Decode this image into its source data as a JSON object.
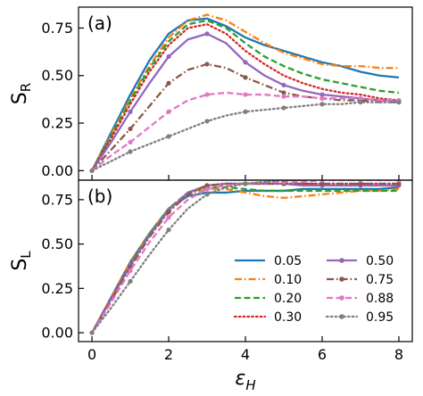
{
  "chart_data": [
    {
      "type": "line",
      "panel_label": "(a)",
      "ylabel": "S",
      "ylabel_subscript": "R",
      "xlabel": "",
      "xlim": [
        -0.35,
        8.35
      ],
      "ylim": [
        -0.05,
        0.86
      ],
      "xticks": [
        0,
        2,
        4,
        6,
        8
      ],
      "xtick_labels": [
        "",
        "",
        "",
        "",
        ""
      ],
      "yticks": [
        0.0,
        0.25,
        0.5,
        0.75
      ],
      "ytick_labels": [
        "0.00",
        "0.25",
        "0.50",
        "0.75"
      ],
      "grid": false,
      "series": [
        {
          "name": "0.05",
          "color": "#1f77b4",
          "style": "solid",
          "marker": "none",
          "x": [
            0,
            0.5,
            1,
            1.5,
            2,
            2.5,
            3,
            3.5,
            4,
            4.5,
            5,
            5.5,
            6,
            6.5,
            7,
            7.5,
            8
          ],
          "y": [
            0,
            0.2,
            0.4,
            0.58,
            0.72,
            0.79,
            0.8,
            0.76,
            0.7,
            0.66,
            0.63,
            0.6,
            0.57,
            0.55,
            0.52,
            0.5,
            0.49
          ]
        },
        {
          "name": "0.10",
          "color": "#ff7f0e",
          "style": "dashdot",
          "marker": "none",
          "x": [
            0,
            0.5,
            1,
            1.5,
            2,
            2.5,
            3,
            3.5,
            4,
            4.5,
            5,
            5.5,
            6,
            6.5,
            7,
            7.5,
            8
          ],
          "y": [
            0,
            0.19,
            0.38,
            0.55,
            0.7,
            0.79,
            0.82,
            0.79,
            0.73,
            0.67,
            0.62,
            0.59,
            0.56,
            0.55,
            0.55,
            0.54,
            0.54
          ]
        },
        {
          "name": "0.20",
          "color": "#2ca02c",
          "style": "dashed",
          "marker": "none",
          "x": [
            0,
            0.5,
            1,
            1.5,
            2,
            2.5,
            3,
            3.5,
            4,
            4.5,
            5,
            5.5,
            6,
            6.5,
            7,
            7.5,
            8
          ],
          "y": [
            0,
            0.18,
            0.37,
            0.54,
            0.68,
            0.77,
            0.79,
            0.75,
            0.67,
            0.6,
            0.55,
            0.51,
            0.48,
            0.46,
            0.44,
            0.42,
            0.41
          ]
        },
        {
          "name": "0.30",
          "color": "#d62728",
          "style": "dotted",
          "marker": "none",
          "x": [
            0,
            0.5,
            1,
            1.5,
            2,
            2.5,
            3,
            3.5,
            4,
            4.5,
            5,
            5.5,
            6,
            6.5,
            7,
            7.5,
            8
          ],
          "y": [
            0,
            0.17,
            0.35,
            0.52,
            0.66,
            0.75,
            0.77,
            0.72,
            0.63,
            0.56,
            0.5,
            0.46,
            0.43,
            0.41,
            0.4,
            0.38,
            0.37
          ]
        },
        {
          "name": "0.50",
          "color": "#9467bd",
          "style": "solid",
          "marker": "circle",
          "x": [
            0,
            0.5,
            1,
            1.5,
            2,
            2.5,
            3,
            3.5,
            4,
            4.5,
            5,
            5.5,
            6,
            6.5,
            7,
            7.5,
            8
          ],
          "y": [
            0,
            0.15,
            0.31,
            0.46,
            0.6,
            0.69,
            0.72,
            0.67,
            0.57,
            0.5,
            0.45,
            0.42,
            0.4,
            0.39,
            0.38,
            0.37,
            0.37
          ]
        },
        {
          "name": "0.75",
          "color": "#8c564b",
          "style": "dashdot",
          "marker": "circle",
          "x": [
            0,
            0.5,
            1,
            1.5,
            2,
            2.5,
            3,
            3.5,
            4,
            4.5,
            5,
            5.5,
            6,
            6.5,
            7,
            7.5,
            8
          ],
          "y": [
            0,
            0.11,
            0.22,
            0.34,
            0.46,
            0.53,
            0.56,
            0.54,
            0.49,
            0.45,
            0.41,
            0.39,
            0.38,
            0.37,
            0.37,
            0.36,
            0.36
          ]
        },
        {
          "name": "0.88",
          "color": "#e377c2",
          "style": "dashed",
          "marker": "circle",
          "x": [
            0,
            0.5,
            1,
            1.5,
            2,
            2.5,
            3,
            3.5,
            4,
            4.5,
            5,
            5.5,
            6,
            6.5,
            7,
            7.5,
            8
          ],
          "y": [
            0,
            0.08,
            0.15,
            0.23,
            0.31,
            0.37,
            0.4,
            0.41,
            0.4,
            0.4,
            0.39,
            0.39,
            0.38,
            0.38,
            0.38,
            0.37,
            0.37
          ]
        },
        {
          "name": "0.95",
          "color": "#7f7f7f",
          "style": "dotted",
          "marker": "circle",
          "x": [
            0,
            0.5,
            1,
            1.5,
            2,
            2.5,
            3,
            3.5,
            4,
            4.5,
            5,
            5.5,
            6,
            6.5,
            7,
            7.5,
            8
          ],
          "y": [
            0,
            0.05,
            0.1,
            0.14,
            0.18,
            0.22,
            0.26,
            0.29,
            0.31,
            0.32,
            0.33,
            0.34,
            0.35,
            0.35,
            0.36,
            0.36,
            0.36
          ]
        }
      ]
    },
    {
      "type": "line",
      "panel_label": "(b)",
      "ylabel": "S",
      "ylabel_subscript": "L",
      "xlabel": "ε",
      "xlabel_subscript": "H",
      "xlim": [
        -0.35,
        8.35
      ],
      "ylim": [
        -0.05,
        0.86
      ],
      "xticks": [
        0,
        2,
        4,
        6,
        8
      ],
      "xtick_labels": [
        "0",
        "2",
        "4",
        "6",
        "8"
      ],
      "yticks": [
        0.0,
        0.25,
        0.5,
        0.75
      ],
      "ytick_labels": [
        "0.00",
        "0.25",
        "0.50",
        "0.75"
      ],
      "grid": false,
      "legend_position": "bottom-right",
      "legend_columns": 2,
      "series": [
        {
          "name": "0.05",
          "color": "#1f77b4",
          "style": "solid",
          "marker": "none",
          "x": [
            0,
            0.5,
            1,
            1.5,
            2,
            2.5,
            3,
            3.5,
            4,
            4.5,
            5,
            5.5,
            6,
            6.5,
            7,
            7.5,
            8
          ],
          "y": [
            0,
            0.2,
            0.4,
            0.56,
            0.7,
            0.77,
            0.79,
            0.79,
            0.8,
            0.8,
            0.8,
            0.81,
            0.81,
            0.81,
            0.81,
            0.81,
            0.82
          ]
        },
        {
          "name": "0.10",
          "color": "#ff7f0e",
          "style": "dashdot",
          "marker": "none",
          "x": [
            0,
            0.5,
            1,
            1.5,
            2,
            2.5,
            3,
            3.5,
            4,
            4.5,
            5,
            5.5,
            6,
            6.5,
            7,
            7.5,
            8
          ],
          "y": [
            0,
            0.2,
            0.4,
            0.56,
            0.7,
            0.78,
            0.81,
            0.81,
            0.79,
            0.77,
            0.76,
            0.77,
            0.78,
            0.79,
            0.8,
            0.8,
            0.81
          ]
        },
        {
          "name": "0.20",
          "color": "#2ca02c",
          "style": "dashed",
          "marker": "none",
          "x": [
            0,
            0.5,
            1,
            1.5,
            2,
            2.5,
            3,
            3.5,
            4,
            4.5,
            5,
            5.5,
            6,
            6.5,
            7,
            7.5,
            8
          ],
          "y": [
            0,
            0.19,
            0.39,
            0.56,
            0.7,
            0.79,
            0.82,
            0.82,
            0.81,
            0.8,
            0.8,
            0.8,
            0.8,
            0.8,
            0.8,
            0.8,
            0.8
          ]
        },
        {
          "name": "0.30",
          "color": "#d62728",
          "style": "dotted",
          "marker": "none",
          "x": [
            0,
            0.5,
            1,
            1.5,
            2,
            2.5,
            3,
            3.5,
            4,
            4.5,
            5,
            5.5,
            6,
            6.5,
            7,
            7.5,
            8
          ],
          "y": [
            0,
            0.19,
            0.38,
            0.55,
            0.69,
            0.79,
            0.83,
            0.84,
            0.84,
            0.84,
            0.84,
            0.84,
            0.84,
            0.84,
            0.84,
            0.84,
            0.84
          ]
        },
        {
          "name": "0.50",
          "color": "#9467bd",
          "style": "solid",
          "marker": "circle",
          "x": [
            0,
            0.5,
            1,
            1.5,
            2,
            2.5,
            3,
            3.5,
            4,
            4.5,
            5,
            5.5,
            6,
            6.5,
            7,
            7.5,
            8
          ],
          "y": [
            0,
            0.19,
            0.38,
            0.55,
            0.69,
            0.79,
            0.83,
            0.84,
            0.84,
            0.84,
            0.84,
            0.83,
            0.83,
            0.83,
            0.83,
            0.83,
            0.83
          ]
        },
        {
          "name": "0.75",
          "color": "#8c564b",
          "style": "dashdot",
          "marker": "circle",
          "x": [
            0,
            0.5,
            1,
            1.5,
            2,
            2.5,
            3,
            3.5,
            4,
            4.5,
            5,
            5.5,
            6,
            6.5,
            7,
            7.5,
            8
          ],
          "y": [
            0,
            0.18,
            0.37,
            0.54,
            0.68,
            0.78,
            0.83,
            0.84,
            0.84,
            0.84,
            0.84,
            0.84,
            0.84,
            0.84,
            0.84,
            0.84,
            0.84
          ]
        },
        {
          "name": "0.88",
          "color": "#e377c2",
          "style": "dashed",
          "marker": "circle",
          "x": [
            0,
            0.5,
            1,
            1.5,
            2,
            2.5,
            3,
            3.5,
            4,
            4.5,
            5,
            5.5,
            6,
            6.5,
            7,
            7.5,
            8
          ],
          "y": [
            0,
            0.17,
            0.35,
            0.51,
            0.65,
            0.75,
            0.81,
            0.83,
            0.84,
            0.85,
            0.85,
            0.85,
            0.86,
            0.86,
            0.86,
            0.86,
            0.86
          ]
        },
        {
          "name": "0.95",
          "color": "#7f7f7f",
          "style": "dotted",
          "marker": "circle",
          "x": [
            0,
            0.5,
            1,
            1.5,
            2,
            2.5,
            3,
            3.5,
            4,
            4.5,
            5,
            5.5,
            6,
            6.5,
            7,
            7.5,
            8
          ],
          "y": [
            0,
            0.14,
            0.29,
            0.44,
            0.58,
            0.7,
            0.78,
            0.82,
            0.84,
            0.85,
            0.86,
            0.86,
            0.87,
            0.87,
            0.87,
            0.87,
            0.87
          ]
        }
      ]
    }
  ]
}
